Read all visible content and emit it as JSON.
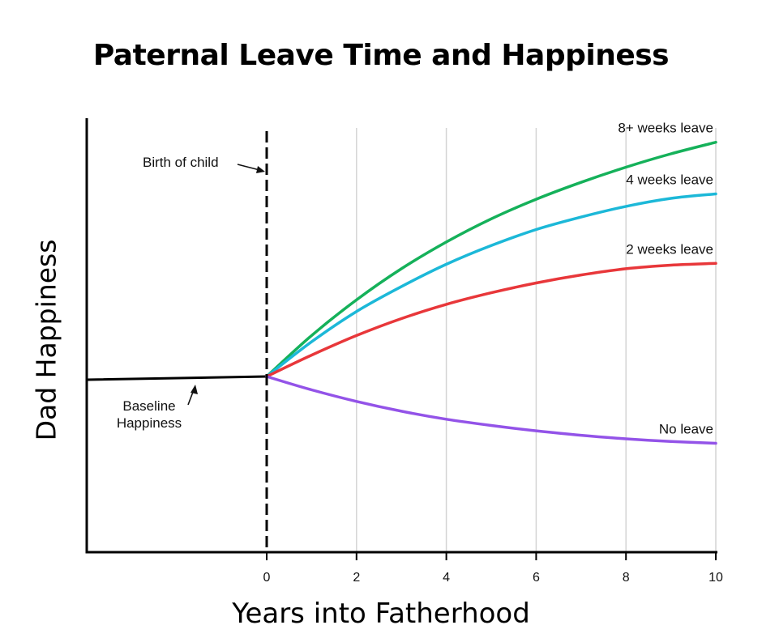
{
  "chart_data": {
    "type": "line",
    "title": "Paternal Leave Time and Happiness",
    "xlabel": "Years into Fatherhood",
    "ylabel": "Dad Happiness",
    "xlim": [
      0,
      10
    ],
    "x_ticks": [
      0,
      2,
      4,
      6,
      8,
      10
    ],
    "grid": "vertical",
    "baseline": {
      "label": "Baseline Happiness",
      "value": 0,
      "color": "#000000"
    },
    "birth_marker": {
      "label": "Birth of child",
      "x": 0,
      "color": "#000000"
    },
    "x": [
      0,
      1,
      2,
      3,
      4,
      5,
      6,
      7,
      8,
      9,
      10
    ],
    "series": [
      {
        "name": "8+ weeks leave",
        "color": "#15b15a",
        "values": [
          0,
          4.6,
          8.6,
          12.1,
          15.1,
          17.7,
          19.9,
          21.8,
          23.5,
          25.0,
          26.3
        ]
      },
      {
        "name": "4 weeks leave",
        "color": "#1cb8d8",
        "values": [
          0,
          3.9,
          7.3,
          10.1,
          12.6,
          14.7,
          16.5,
          17.9,
          19.1,
          20.0,
          20.5
        ]
      },
      {
        "name": "2 weeks leave",
        "color": "#e8373a",
        "values": [
          0,
          2.4,
          4.6,
          6.5,
          8.1,
          9.4,
          10.5,
          11.4,
          12.1,
          12.5,
          12.7
        ]
      },
      {
        "name": "No leave",
        "color": "#9353e8",
        "values": [
          0,
          -1.5,
          -2.8,
          -3.9,
          -4.8,
          -5.5,
          -6.1,
          -6.6,
          -7.0,
          -7.3,
          -7.5
        ]
      }
    ]
  }
}
